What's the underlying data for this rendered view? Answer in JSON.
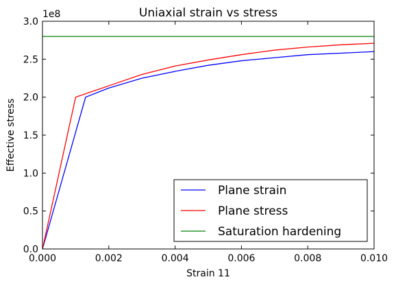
{
  "chart_data": {
    "type": "line",
    "title": "Uniaxial strain vs stress",
    "xlabel": "Strain 11",
    "ylabel": "Effective stress",
    "y_offset_label": "1e8",
    "xlim": [
      0.0,
      0.01
    ],
    "ylim": [
      0.0,
      3.0
    ],
    "x_ticks": [
      "0.000",
      "0.002",
      "0.004",
      "0.006",
      "0.008",
      "0.010"
    ],
    "y_ticks": [
      "0.0",
      "0.5",
      "1.0",
      "1.5",
      "2.0",
      "2.5",
      "3.0"
    ],
    "grid": false,
    "legend_position": "lower-right",
    "series": [
      {
        "name": "Plane strain",
        "color": "#0000ff",
        "x": [
          0.0,
          0.0013,
          0.002,
          0.003,
          0.004,
          0.005,
          0.006,
          0.007,
          0.008,
          0.009,
          0.01
        ],
        "y": [
          0.0,
          2.0,
          2.12,
          2.25,
          2.34,
          2.42,
          2.48,
          2.52,
          2.56,
          2.58,
          2.6
        ]
      },
      {
        "name": "Plane stress",
        "color": "#ff0000",
        "x": [
          0.0,
          0.001,
          0.002,
          0.003,
          0.004,
          0.005,
          0.006,
          0.007,
          0.008,
          0.009,
          0.01
        ],
        "y": [
          0.0,
          2.0,
          2.15,
          2.3,
          2.41,
          2.49,
          2.56,
          2.62,
          2.66,
          2.69,
          2.71
        ]
      },
      {
        "name": "Saturation hardening",
        "color": "#008000",
        "x": [
          0.0,
          0.01
        ],
        "y": [
          2.8,
          2.8
        ]
      }
    ]
  }
}
